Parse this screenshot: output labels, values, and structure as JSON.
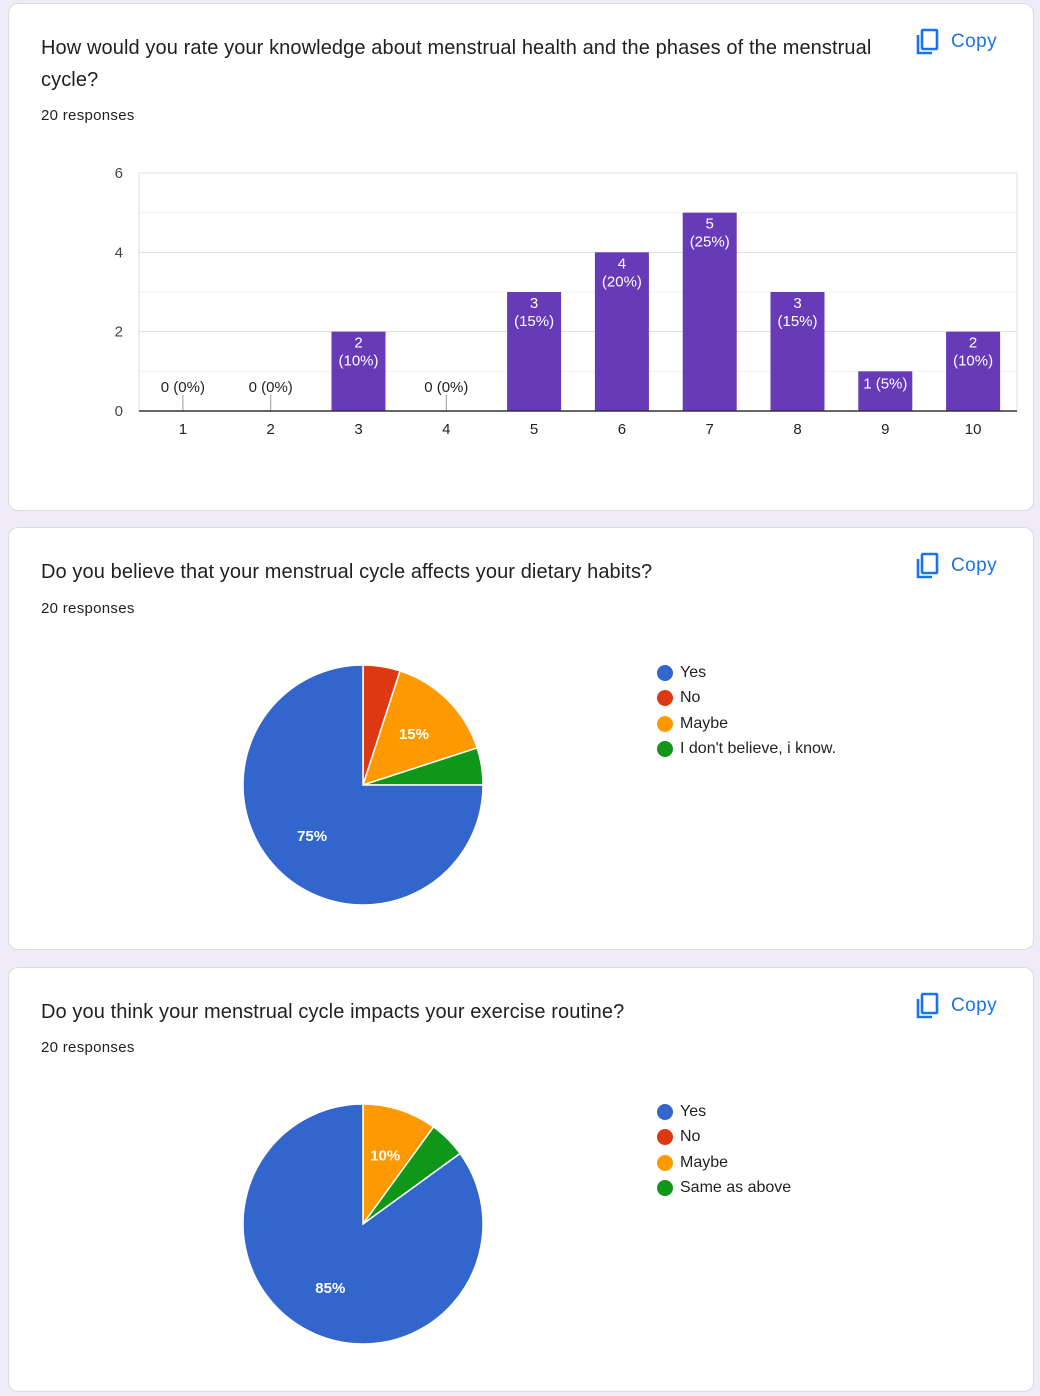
{
  "colors": {
    "blue": "#3366cc",
    "red": "#dc3912",
    "orange": "#ff9900",
    "green": "#109618",
    "purple": "#673ab7",
    "copy": "#1a73e8"
  },
  "cards": [
    {
      "title": "How would you rate your knowledge about menstrual health and the phases of the menstrual cycle?",
      "responses": "20 responses",
      "copy_label": "Copy"
    },
    {
      "title": "Do you believe that your menstrual cycle affects your dietary habits?",
      "responses": "20 responses",
      "copy_label": "Copy"
    },
    {
      "title": "Do you think your menstrual cycle impacts your exercise routine?",
      "responses": "20 responses",
      "copy_label": "Copy"
    }
  ],
  "chart_data": [
    {
      "type": "bar",
      "title": "How would you rate your knowledge about menstrual health and the phases of the menstrual cycle?",
      "categories": [
        "1",
        "2",
        "3",
        "4",
        "5",
        "6",
        "7",
        "8",
        "9",
        "10"
      ],
      "values": [
        0,
        0,
        2,
        0,
        3,
        4,
        5,
        3,
        1,
        2
      ],
      "percents": [
        "0%",
        "0%",
        "10%",
        "0%",
        "15%",
        "20%",
        "25%",
        "15%",
        "5%",
        "10%"
      ],
      "yticks": [
        0,
        2,
        4,
        6
      ],
      "ylim": [
        0,
        6
      ]
    },
    {
      "type": "pie",
      "title": "Do you believe that your menstrual cycle affects your dietary habits?",
      "labels": [
        "Yes",
        "No",
        "Maybe",
        "I don't believe, i know."
      ],
      "values": [
        75,
        5,
        15,
        5
      ],
      "slice_labels": [
        "75%",
        "",
        "15%",
        ""
      ],
      "colors": [
        "#3366cc",
        "#dc3912",
        "#ff9900",
        "#109618"
      ]
    },
    {
      "type": "pie",
      "title": "Do you think your menstrual cycle impacts your exercise routine?",
      "labels": [
        "Yes",
        "No",
        "Maybe",
        "Same as above"
      ],
      "values": [
        85,
        0,
        10,
        5
      ],
      "slice_labels": [
        "85%",
        "",
        "10%",
        ""
      ],
      "colors": [
        "#3366cc",
        "#dc3912",
        "#ff9900",
        "#109618"
      ]
    }
  ]
}
